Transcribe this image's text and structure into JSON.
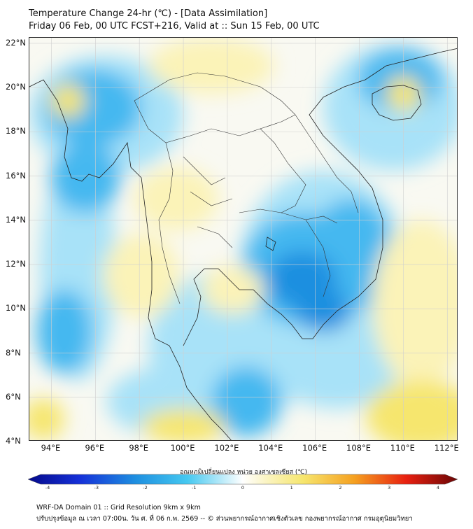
{
  "title_line1": "Temperature Change 24-hr (℃) - [Data Assimilation]",
  "title_line2": "Friday 06 Feb, 00 UTC FCST+216, Valid at :: Sun 15 Feb, 00 UTC",
  "map": {
    "lat_labels": [
      "22°N",
      "20°N",
      "18°N",
      "16°N",
      "14°N",
      "12°N",
      "10°N",
      "8°N",
      "6°N",
      "4°N"
    ],
    "lon_labels": [
      "94°E",
      "96°E",
      "98°E",
      "100°E",
      "102°E",
      "104°E",
      "106°E",
      "108°E",
      "110°E",
      "112°E"
    ],
    "lat_range": [
      4,
      22.25
    ],
    "lon_range": [
      93,
      112.5
    ],
    "colors": {
      "cool_strong": "#1e8fe0",
      "cool_mid": "#45b8f0",
      "cool_light": "#a8e2f8",
      "neutral": "#f8f8f0",
      "warm_light": "#fbf3b8",
      "warm_mid": "#f6e66e",
      "coastline": "#222222",
      "grid": "#cccccc"
    }
  },
  "colorbar": {
    "title": "อุณหภูมิเปลี่ยนแปลง หน่วย องศาเซลเซียส (℃)",
    "ticks": [
      "-4",
      "-3",
      "-2",
      "-1",
      "0",
      "1",
      "2",
      "3",
      "4"
    ],
    "min": -4,
    "max": 4
  },
  "footer_line1": "WRF-DA Domain 01 :: Grid Resolution 9km x 9km",
  "footer_line2": "ปรับปรุงข้อมูล ณ เวลา 07:00น. วัน ศ. ที่ 06 ก.พ. 2569 -- © ส่วนพยากรณ์อากาศเชิงตัวเลข กองพยากรณ์อากาศ กรมอุตุนิยมวิทยา"
}
